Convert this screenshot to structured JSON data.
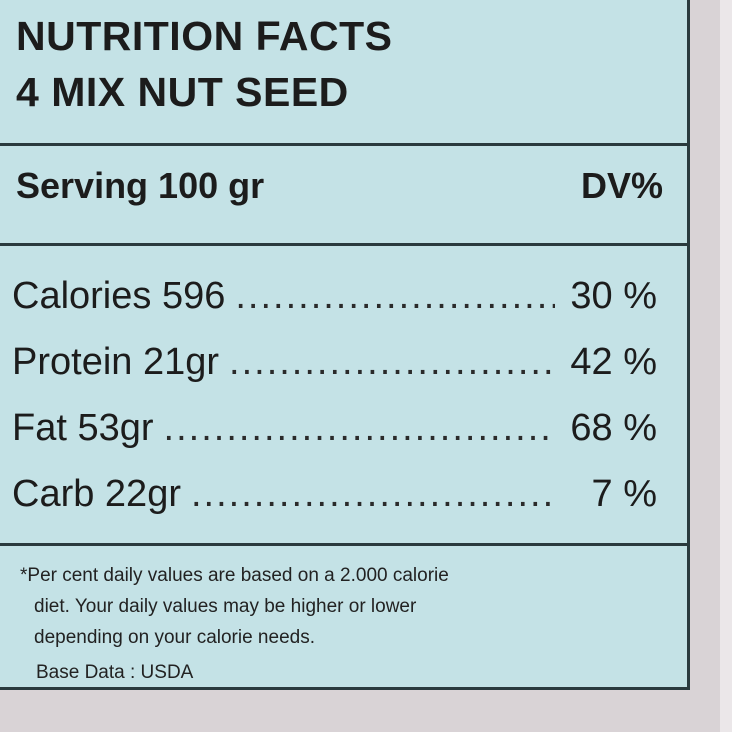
{
  "title": {
    "line1": "NUTRITION FACTS",
    "line2": "4 MIX NUT SEED"
  },
  "serving": {
    "label": "Serving 100 gr",
    "dv_header": "DV%"
  },
  "nutrients": [
    {
      "label": "Calories 596",
      "dv": "30 %"
    },
    {
      "label": "Protein 21gr",
      "dv": "42 %"
    },
    {
      "label": "Fat 53gr",
      "dv": "68 %"
    },
    {
      "label": "Carb 22gr",
      "dv": "7 %"
    }
  ],
  "footnote": {
    "line1": "*Per cent daily values are based on a 2.000 calorie",
    "line2": "diet. Your daily values may be higher or lower",
    "line3": "depending on your calorie needs.",
    "base_data": "Base Data : USDA"
  },
  "colors": {
    "label_background": "#c4e2e6",
    "rule": "#2a3a3e",
    "surround": "#d9d3d6"
  }
}
